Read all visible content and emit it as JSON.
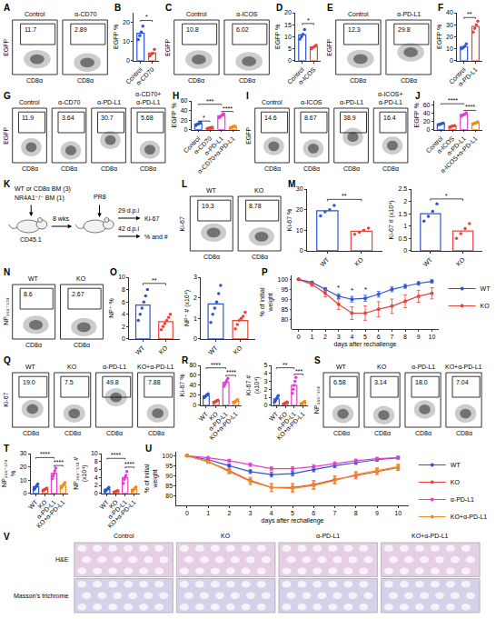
{
  "chart_data": [
    {
      "panel": "A",
      "type": "flow",
      "x_label": "CD8α",
      "y_label": "EGFP",
      "plots": [
        {
          "title": "Control",
          "value": 11.7
        },
        {
          "title": "α-CD70",
          "value": 2.89
        }
      ]
    },
    {
      "panel": "B",
      "type": "bar",
      "y_label": "EGFP %",
      "categories": [
        "Control",
        "α-CD70"
      ],
      "colors": [
        "#2d55d6",
        "#e8443a"
      ],
      "values": [
        14.3,
        4
      ],
      "points": [
        [
          11,
          13,
          15,
          18
        ],
        [
          2.5,
          3.5,
          4,
          6
        ]
      ],
      "ylim": [
        0,
        25
      ],
      "yticks": [
        0,
        10,
        20
      ],
      "significance": [
        {
          "from": 0,
          "to": 1,
          "y": 21,
          "label": "*"
        }
      ]
    },
    {
      "panel": "C",
      "type": "flow",
      "x_label": "CD8α",
      "y_label": "EGFP",
      "plots": [
        {
          "title": "Control",
          "value": 10.8
        },
        {
          "title": "α-ICOS",
          "value": 6.02
        }
      ]
    },
    {
      "panel": "D",
      "type": "bar",
      "y_label": "EGFP %",
      "categories": [
        "Control",
        "α-ICOS"
      ],
      "colors": [
        "#2d55d6",
        "#e8443a"
      ],
      "values": [
        10.8,
        5.8
      ],
      "points": [
        [
          9,
          10,
          11,
          13
        ],
        [
          5,
          5.5,
          6,
          6.5
        ]
      ],
      "ylim": [
        0,
        20
      ],
      "yticks": [
        0,
        5,
        10,
        15,
        20
      ],
      "significance": [
        {
          "from": 0,
          "to": 1,
          "y": 15.5,
          "label": "*"
        }
      ]
    },
    {
      "panel": "E",
      "type": "flow",
      "x_label": "CD8α",
      "y_label": "EGFP",
      "plots": [
        {
          "title": "Control",
          "value": 12.3
        },
        {
          "title": "α-PD-L1",
          "value": 29.8
        }
      ]
    },
    {
      "panel": "F",
      "type": "bar",
      "y_label": "EGFP %",
      "categories": [
        "Control",
        "α-PD-L1"
      ],
      "colors": [
        "#2d55d6",
        "#e8443a"
      ],
      "values": [
        11.8,
        28.5
      ],
      "points": [
        [
          10,
          11,
          12,
          14
        ],
        [
          24,
          27,
          30,
          33
        ]
      ],
      "ylim": [
        0,
        40
      ],
      "yticks": [
        0,
        10,
        20,
        30,
        40
      ],
      "significance": [
        {
          "from": 0,
          "to": 1,
          "y": 36,
          "label": "**"
        }
      ]
    },
    {
      "panel": "G",
      "type": "flow",
      "x_label": "CD8α",
      "y_label": "EGFP",
      "plots": [
        {
          "title": "Control",
          "value": 11.9
        },
        {
          "title": "α-CD70",
          "value": 3.64
        },
        {
          "title": "α-PD-L1",
          "value": 30.7
        },
        {
          "title": "α-CD70+α-PD-L1",
          "value": 5.68
        }
      ]
    },
    {
      "panel": "H",
      "type": "bar",
      "y_label": "EGFP %",
      "categories": [
        "Control",
        "α-CD70",
        "α-PD-L1",
        "α-CD70+α-PD-L1"
      ],
      "colors": [
        "#2d55d6",
        "#e8443a",
        "#e23fd0",
        "#f28b1e"
      ],
      "values": [
        12,
        3.6,
        29,
        5.8
      ],
      "points": [
        [
          9,
          11,
          12,
          13,
          15
        ],
        [
          2,
          3,
          4,
          4,
          5
        ],
        [
          25,
          27,
          29,
          31,
          33
        ],
        [
          4,
          5,
          6,
          7,
          7
        ]
      ],
      "ylim": [
        0,
        60
      ],
      "yticks": [
        0,
        20,
        40,
        60
      ],
      "significance": [
        {
          "from": 0,
          "to": 1,
          "y": 18,
          "label": "*"
        },
        {
          "from": 0,
          "to": 2,
          "y": 53,
          "label": "***"
        },
        {
          "from": 2,
          "to": 3,
          "y": 38,
          "label": "****"
        }
      ]
    },
    {
      "panel": "I",
      "type": "flow",
      "x_label": "CD8α",
      "y_label": "EGFP",
      "plots": [
        {
          "title": "Control",
          "value": 14.6
        },
        {
          "title": "α-ICOS",
          "value": 8.67
        },
        {
          "title": "α-PD-L1",
          "value": 38.9
        },
        {
          "title": "α-ICOS+α-PD-L1",
          "value": 16.4
        }
      ]
    },
    {
      "panel": "J",
      "type": "bar",
      "y_label": "EGFP %",
      "categories": [
        "Control",
        "α-ICOS",
        "α-PD-L1",
        "α-ICOS+α-PD-L1"
      ],
      "colors": [
        "#2d55d6",
        "#e8443a",
        "#e23fd0",
        "#f28b1e"
      ],
      "values": [
        14,
        8.3,
        37,
        16.3
      ],
      "points": [
        [
          12,
          13,
          15,
          16
        ],
        [
          6,
          8,
          9,
          10
        ],
        [
          33,
          36,
          38,
          41
        ],
        [
          13,
          16,
          17,
          19
        ]
      ],
      "ylim": [
        0,
        70
      ],
      "yticks": [
        0,
        20,
        40,
        60
      ],
      "significance": [
        {
          "from": 0,
          "to": 2,
          "y": 63,
          "label": "****"
        },
        {
          "from": 2,
          "to": 3,
          "y": 47,
          "label": "****"
        }
      ]
    },
    {
      "panel": "K",
      "type": "diagram",
      "donor": [
        "WT or CD8α BM (3)",
        "NR4A1⁻/⁻ BM (1)"
      ],
      "recipient": "CD45.1",
      "interval": "8 wks",
      "infection": "PR8",
      "readouts": [
        {
          "time": "29 d.p.i",
          "measure": "Ki-67"
        },
        {
          "time": "42 d.p.i",
          "measure": "% and #"
        }
      ]
    },
    {
      "panel": "L",
      "type": "flow",
      "x_label": "CD8α",
      "y_label": "Ki-67",
      "plots": [
        {
          "title": "WT",
          "value": 19.3
        },
        {
          "title": "KO",
          "value": 8.78
        }
      ]
    },
    {
      "panel": "M",
      "type": "bar",
      "y_label": "Ki-67 %",
      "categories": [
        "WT",
        "KO"
      ],
      "colors": [
        "#2d55d6",
        "#e8443a"
      ],
      "values": [
        19.5,
        9.5
      ],
      "points": [
        [
          17,
          19,
          20,
          22
        ],
        [
          8,
          9,
          10,
          11
        ]
      ],
      "ylim": [
        0,
        30
      ],
      "yticks": [
        0,
        10,
        20,
        30
      ],
      "significance": [
        {
          "from": 0,
          "to": 1,
          "y": 25,
          "label": "**"
        }
      ]
    },
    {
      "type": "bar",
      "y_label": "Ki-67 # (x10⁴)",
      "categories": [
        "WT",
        "KO"
      ],
      "colors": [
        "#2d55d6",
        "#e8443a"
      ],
      "values": [
        1.5,
        0.8
      ],
      "points": [
        [
          1.2,
          1.4,
          1.6,
          1.9
        ],
        [
          0.5,
          0.7,
          0.9,
          1.1
        ]
      ],
      "ylim": [
        0,
        2.5
      ],
      "yticks": [
        0,
        0.5,
        1,
        1.5,
        2,
        2.5
      ],
      "significance": [
        {
          "from": 0,
          "to": 1,
          "y": 2.1,
          "label": "*"
        }
      ]
    },
    {
      "panel": "N",
      "type": "flow",
      "x_label": "CD8α",
      "y_label": "NP₃₆₆₋₃₇₄",
      "plots": [
        {
          "title": "WT",
          "value": 8.6
        },
        {
          "title": "KO",
          "value": 2.67
        }
      ]
    },
    {
      "panel": "O",
      "type": "bar",
      "y_label": "NP⁺ %",
      "categories": [
        "WT",
        "KO"
      ],
      "colors": [
        "#2d55d6",
        "#e8443a"
      ],
      "values": [
        5.5,
        2.8
      ],
      "points": [
        [
          3,
          4,
          5,
          6,
          7,
          8
        ],
        [
          1.5,
          2,
          2.5,
          3,
          3.5,
          4
        ]
      ],
      "ylim": [
        0,
        10
      ],
      "yticks": [
        0,
        2,
        4,
        6,
        8,
        10
      ],
      "significance": [
        {
          "from": 0,
          "to": 1,
          "y": 9,
          "label": "**"
        }
      ]
    },
    {
      "type": "bar",
      "y_label": "NP⁺ # (x10⁴)",
      "categories": [
        "WT",
        "KO"
      ],
      "colors": [
        "#2d55d6",
        "#e8443a"
      ],
      "values": [
        1.7,
        0.9
      ],
      "points": [
        [
          0.8,
          1.2,
          1.5,
          1.8,
          2.2,
          2.6
        ],
        [
          0.5,
          0.7,
          0.9,
          1,
          1.1,
          1.3
        ]
      ],
      "ylim": [
        0,
        3
      ],
      "yticks": [
        0,
        1,
        2,
        3
      ]
    },
    {
      "panel": "P",
      "type": "line",
      "x_label": "days after rechallenge",
      "y_label": "% of initial weight",
      "x": [
        0,
        1,
        2,
        3,
        4,
        5,
        6,
        7,
        8,
        9,
        10
      ],
      "xlim": [
        -0.5,
        10.5
      ],
      "xticks": [
        0,
        1,
        2,
        3,
        4,
        5,
        6,
        7,
        8,
        9,
        10
      ],
      "ylim": [
        75,
        102
      ],
      "yticks": [
        80,
        85,
        90,
        95,
        100
      ],
      "legend": "right",
      "marker": "circle",
      "series": [
        {
          "name": "WT",
          "color": "#2d55d6",
          "values": [
            100,
            98.5,
            95,
            91.5,
            90,
            90.5,
            92.5,
            95,
            96.5,
            98,
            99
          ],
          "errors": [
            0,
            0.6,
            0.9,
            1.2,
            1.4,
            1.5,
            1.4,
            1.2,
            1,
            0.9,
            0.8
          ]
        },
        {
          "name": "KO",
          "color": "#e8443a",
          "values": [
            100,
            97.5,
            93,
            87.5,
            83,
            83,
            85,
            86.5,
            89,
            91.5,
            93
          ],
          "errors": [
            0,
            1,
            1.8,
            2.6,
            3.2,
            3.6,
            3.8,
            3.6,
            3.2,
            3,
            2.8
          ]
        }
      ],
      "stars": {
        "x": [
          3,
          4,
          5
        ],
        "label": "*"
      }
    },
    {
      "panel": "Q",
      "type": "flow",
      "x_label": "CD8α",
      "y_label": "Ki-67",
      "plots": [
        {
          "title": "WT",
          "value": 19,
          "label": "19.0"
        },
        {
          "title": "KO",
          "value": 7.5
        },
        {
          "title": "α-PD-L1",
          "value": 49.8
        },
        {
          "title": "KO+α-PD-L1",
          "value": 7.88
        }
      ]
    },
    {
      "panel": "R",
      "type": "bar",
      "y_label": "Ki-67 %",
      "categories": [
        "WT",
        "KO",
        "α-PD-L1",
        "KO+α-PD-L1"
      ],
      "colors": [
        "#2d55d6",
        "#e8443a",
        "#e23fd0",
        "#f28b1e"
      ],
      "values": [
        19,
        7.8,
        46,
        8
      ],
      "points": [
        [
          15,
          17,
          19,
          21,
          23
        ],
        [
          5,
          7,
          8,
          9,
          10
        ],
        [
          38,
          42,
          46,
          50,
          54
        ],
        [
          5,
          6,
          8,
          10,
          11
        ]
      ],
      "ylim": [
        0,
        80
      ],
      "yticks": [
        0,
        20,
        40,
        60,
        80
      ],
      "significance": [
        {
          "from": 0,
          "to": 2,
          "y": 75,
          "label": "****"
        },
        {
          "from": 2,
          "to": 3,
          "y": 60,
          "label": "****"
        }
      ]
    },
    {
      "type": "bar",
      "y_label": "Ki-67 # (x10⁴)",
      "categories": [
        "WT",
        "KO",
        "α-PD-L1",
        "KO+α-PD-L1"
      ],
      "colors": [
        "#2d55d6",
        "#e8443a",
        "#e23fd0",
        "#f28b1e"
      ],
      "values": [
        0.8,
        0.26,
        2.5,
        0.3
      ],
      "points": [
        [
          0.4,
          0.6,
          0.8,
          1,
          1.2
        ],
        [
          0.1,
          0.2,
          0.3,
          0.3,
          0.4
        ],
        [
          1.5,
          2,
          2.5,
          3,
          3.5
        ],
        [
          0.1,
          0.2,
          0.3,
          0.4,
          0.5
        ]
      ],
      "ylim": [
        0,
        5
      ],
      "yticks": [
        0,
        1,
        2,
        3,
        4,
        5
      ],
      "significance": [
        {
          "from": 0,
          "to": 2,
          "y": 4.7,
          "label": "**"
        },
        {
          "from": 2,
          "to": 3,
          "y": 3.9,
          "label": "***"
        }
      ]
    },
    {
      "panel": "S",
      "type": "flow",
      "x_label": "CD8α",
      "y_label": "NP₃₆₆₋₃₇₄",
      "plots": [
        {
          "title": "WT",
          "value": 6.58
        },
        {
          "title": "KO",
          "value": 3.14
        },
        {
          "title": "α-PD-L1",
          "value": 18,
          "label": "18.0"
        },
        {
          "title": "KO+α-PD-L1",
          "value": 7.04
        }
      ]
    },
    {
      "panel": "T",
      "type": "bar",
      "y_label": "NP₃₆₆₋₃₇₄ %",
      "categories": [
        "WT",
        "KO",
        "α-PD-L1",
        "KO+α-PD-L1"
      ],
      "colors": [
        "#2d55d6",
        "#e8443a",
        "#e23fd0",
        "#f28b1e"
      ],
      "values": [
        5,
        3,
        15,
        6
      ],
      "points": [
        [
          3,
          4,
          5,
          6,
          7
        ],
        [
          2,
          2.5,
          3,
          3.5,
          4
        ],
        [
          11,
          13,
          15,
          17,
          19
        ],
        [
          4,
          5,
          6,
          7,
          8
        ]
      ],
      "ylim": [
        0,
        30
      ],
      "yticks": [
        0,
        10,
        20,
        30
      ],
      "significance": [
        {
          "from": 0,
          "to": 2,
          "y": 27,
          "label": "****"
        },
        {
          "from": 2,
          "to": 3,
          "y": 21,
          "label": "****"
        }
      ]
    },
    {
      "type": "bar",
      "y_label": "NP₃₆₆₋₃₇₄ # (x10⁴)",
      "categories": [
        "WT",
        "KO",
        "α-PD-L1",
        "KO+α-PD-L1"
      ],
      "colors": [
        "#2d55d6",
        "#e8443a",
        "#e23fd0",
        "#f28b1e"
      ],
      "values": [
        1,
        0.5,
        4,
        1.04
      ],
      "points": [
        [
          0.5,
          0.8,
          1,
          1.2,
          1.5
        ],
        [
          0.3,
          0.4,
          0.5,
          0.6,
          0.7
        ],
        [
          2.5,
          3.5,
          4,
          4.5,
          5.5
        ],
        [
          0.5,
          0.8,
          1,
          1.3,
          1.6
        ]
      ],
      "ylim": [
        0,
        10
      ],
      "yticks": [
        0,
        2,
        4,
        6,
        8,
        10
      ],
      "significance": [
        {
          "from": 0,
          "to": 2,
          "y": 8.8,
          "label": "****"
        },
        {
          "from": 2,
          "to": 3,
          "y": 6.6,
          "label": "****"
        }
      ]
    },
    {
      "panel": "U",
      "type": "line",
      "x_label": "days after rechallenge",
      "y_label": "% of initial weight",
      "x": [
        0,
        1,
        2,
        3,
        4,
        5,
        6,
        7,
        8,
        9,
        10
      ],
      "xlim": [
        -0.5,
        10.5
      ],
      "xticks": [
        0,
        1,
        2,
        3,
        4,
        5,
        6,
        7,
        8,
        9,
        10
      ],
      "ylim": [
        75,
        102
      ],
      "yticks": [
        80,
        85,
        90,
        95,
        100
      ],
      "legend": "right",
      "marker": "circle",
      "series": [
        {
          "name": "WT",
          "color": "#2d55d6",
          "values": [
            100,
            98,
            95,
            92,
            90.5,
            91,
            93,
            95,
            96.5,
            98,
            99
          ],
          "errors": [
            0,
            0.6,
            0.8,
            1,
            1.2,
            1.2,
            1.1,
            1,
            0.9,
            0.8,
            0.7
          ]
        },
        {
          "name": "KO",
          "color": "#e8443a",
          "values": [
            100,
            97,
            92.5,
            87.5,
            84,
            84,
            85.5,
            88,
            90,
            92,
            94
          ],
          "errors": [
            0,
            0.8,
            1.2,
            1.6,
            2,
            2,
            2,
            1.8,
            1.6,
            1.5,
            1.4
          ]
        },
        {
          "name": "α-PD-L1",
          "color": "#e23fd0",
          "values": [
            100,
            99,
            97.5,
            95.5,
            93.5,
            93.5,
            94.5,
            96,
            97.5,
            98.5,
            99
          ],
          "errors": [
            0,
            0.5,
            0.7,
            0.9,
            1,
            1,
            1,
            0.9,
            0.8,
            0.7,
            0.6
          ]
        },
        {
          "name": "KO+α-PD-L1",
          "color": "#f28b1e",
          "values": [
            100,
            97,
            92,
            87,
            84,
            83.5,
            85,
            87.5,
            90.5,
            92.5,
            94.5
          ],
          "errors": [
            0,
            0.8,
            1.2,
            1.6,
            1.9,
            2,
            2,
            1.8,
            1.6,
            1.4,
            1.3
          ]
        }
      ]
    },
    {
      "panel": "V",
      "type": "image",
      "columns": [
        "Control",
        "KO",
        "α-PD-L1",
        "KO+α-PD-L1"
      ],
      "rows": [
        "H&E",
        "Masson's trichrome"
      ]
    }
  ]
}
